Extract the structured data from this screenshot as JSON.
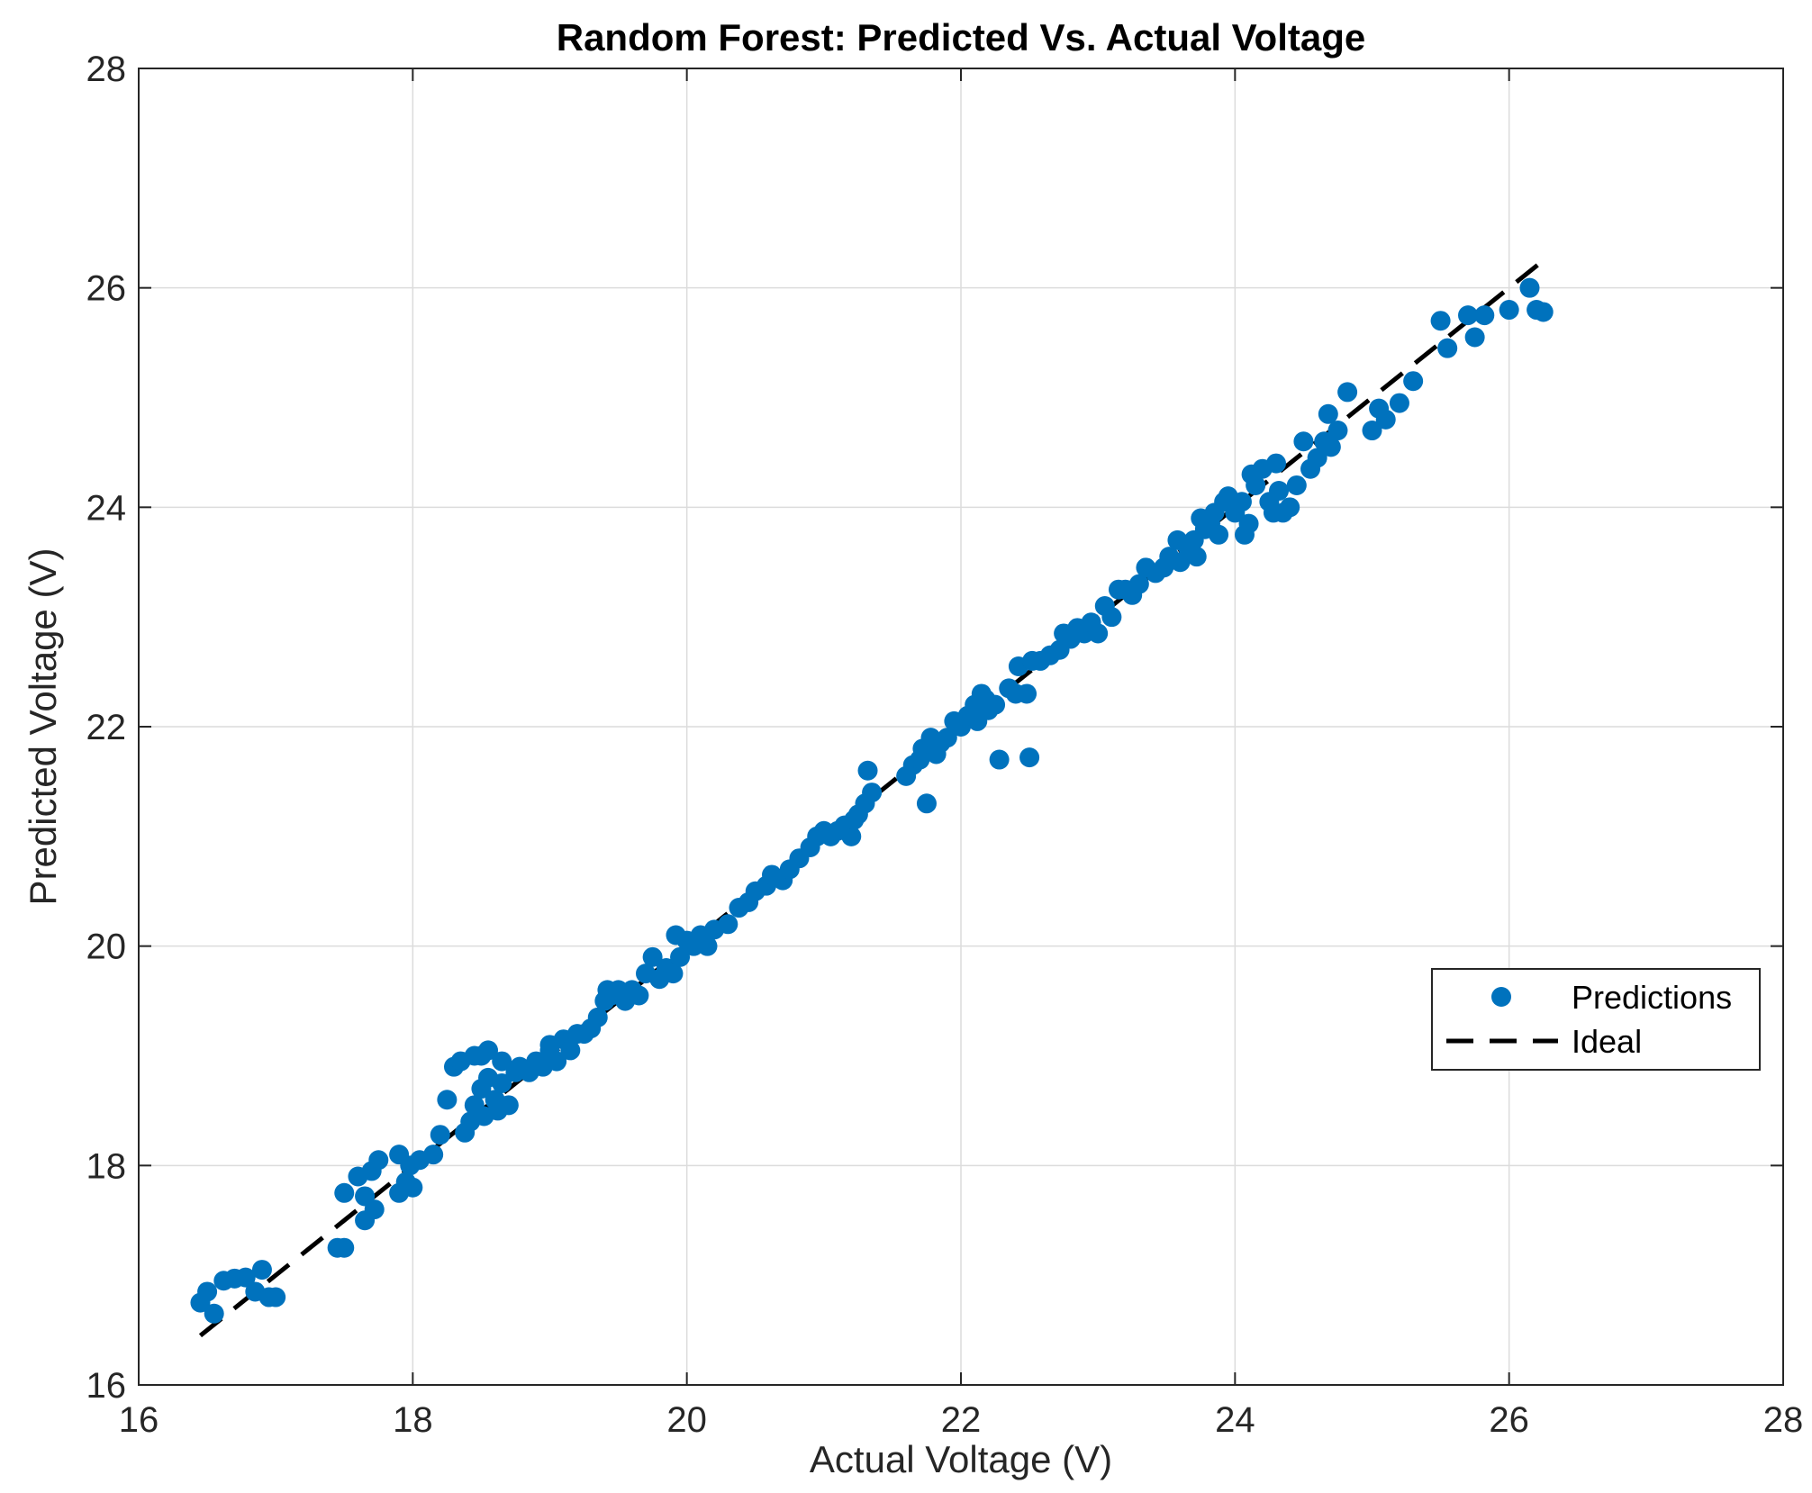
{
  "chart_data": {
    "type": "scatter",
    "title": "Random Forest: Predicted Vs. Actual Voltage",
    "xlabel": "Actual Voltage (V)",
    "ylabel": "Predicted Voltage (V)",
    "xlim": [
      16,
      28
    ],
    "ylim": [
      16,
      28
    ],
    "x_ticks": [
      "16",
      "18",
      "20",
      "22",
      "24",
      "26",
      "28"
    ],
    "y_ticks": [
      "16",
      "18",
      "20",
      "22",
      "24",
      "26",
      "28"
    ],
    "grid": true,
    "legend_position": "right",
    "colors": {
      "predictions": "#0072BD",
      "ideal": "#000000",
      "grid": "#dcdcdc",
      "axis": "#262626"
    },
    "series": [
      {
        "name": "Predictions",
        "style": "markers",
        "points": [
          [
            16.45,
            16.75
          ],
          [
            16.5,
            16.85
          ],
          [
            16.55,
            16.65
          ],
          [
            16.62,
            16.95
          ],
          [
            16.7,
            16.97
          ],
          [
            16.78,
            16.98
          ],
          [
            16.85,
            16.85
          ],
          [
            16.9,
            17.05
          ],
          [
            16.95,
            16.8
          ],
          [
            17.0,
            16.8
          ],
          [
            17.45,
            17.25
          ],
          [
            17.5,
            17.25
          ],
          [
            17.5,
            17.75
          ],
          [
            17.6,
            17.9
          ],
          [
            17.65,
            17.72
          ],
          [
            17.7,
            17.95
          ],
          [
            17.65,
            17.5
          ],
          [
            17.72,
            17.6
          ],
          [
            17.75,
            18.05
          ],
          [
            17.9,
            18.1
          ],
          [
            17.9,
            17.75
          ],
          [
            17.95,
            17.85
          ],
          [
            17.98,
            18.0
          ],
          [
            18.0,
            17.8
          ],
          [
            18.05,
            18.05
          ],
          [
            18.15,
            18.1
          ],
          [
            18.2,
            18.28
          ],
          [
            18.25,
            18.6
          ],
          [
            18.3,
            18.9
          ],
          [
            18.35,
            18.95
          ],
          [
            18.38,
            18.3
          ],
          [
            18.42,
            18.4
          ],
          [
            18.45,
            19.0
          ],
          [
            18.45,
            18.55
          ],
          [
            18.5,
            19.0
          ],
          [
            18.5,
            18.7
          ],
          [
            18.52,
            18.45
          ],
          [
            18.55,
            18.8
          ],
          [
            18.55,
            19.05
          ],
          [
            18.6,
            18.6
          ],
          [
            18.62,
            18.5
          ],
          [
            18.65,
            18.95
          ],
          [
            18.65,
            18.75
          ],
          [
            18.7,
            18.55
          ],
          [
            18.75,
            18.85
          ],
          [
            18.78,
            18.9
          ],
          [
            18.85,
            18.85
          ],
          [
            18.9,
            18.95
          ],
          [
            18.95,
            18.9
          ],
          [
            19.0,
            19.05
          ],
          [
            19.0,
            19.1
          ],
          [
            19.05,
            18.95
          ],
          [
            19.1,
            19.15
          ],
          [
            19.15,
            19.05
          ],
          [
            19.2,
            19.2
          ],
          [
            19.25,
            19.2
          ],
          [
            19.3,
            19.25
          ],
          [
            19.35,
            19.35
          ],
          [
            19.4,
            19.5
          ],
          [
            19.42,
            19.6
          ],
          [
            19.45,
            19.55
          ],
          [
            19.5,
            19.6
          ],
          [
            19.55,
            19.5
          ],
          [
            19.6,
            19.6
          ],
          [
            19.65,
            19.55
          ],
          [
            19.7,
            19.75
          ],
          [
            19.75,
            19.9
          ],
          [
            19.8,
            19.7
          ],
          [
            19.85,
            19.8
          ],
          [
            19.9,
            19.75
          ],
          [
            19.92,
            20.1
          ],
          [
            19.95,
            19.9
          ],
          [
            20.0,
            20.05
          ],
          [
            20.05,
            20.0
          ],
          [
            20.1,
            20.1
          ],
          [
            20.15,
            20.0
          ],
          [
            20.2,
            20.15
          ],
          [
            20.3,
            20.2
          ],
          [
            20.38,
            20.35
          ],
          [
            20.45,
            20.4
          ],
          [
            20.5,
            20.5
          ],
          [
            20.58,
            20.55
          ],
          [
            20.62,
            20.65
          ],
          [
            20.7,
            20.6
          ],
          [
            20.75,
            20.7
          ],
          [
            20.82,
            20.8
          ],
          [
            20.9,
            20.9
          ],
          [
            20.95,
            21.0
          ],
          [
            21.0,
            21.05
          ],
          [
            21.05,
            21.0
          ],
          [
            21.1,
            21.05
          ],
          [
            21.15,
            21.1
          ],
          [
            21.2,
            21.0
          ],
          [
            21.22,
            21.15
          ],
          [
            21.25,
            21.2
          ],
          [
            21.3,
            21.3
          ],
          [
            21.32,
            21.6
          ],
          [
            21.35,
            21.4
          ],
          [
            21.6,
            21.55
          ],
          [
            21.65,
            21.65
          ],
          [
            21.7,
            21.7
          ],
          [
            21.72,
            21.8
          ],
          [
            21.75,
            21.3
          ],
          [
            21.78,
            21.9
          ],
          [
            21.82,
            21.75
          ],
          [
            21.85,
            21.85
          ],
          [
            21.9,
            21.9
          ],
          [
            21.95,
            22.05
          ],
          [
            22.0,
            22.0
          ],
          [
            22.05,
            22.1
          ],
          [
            22.1,
            22.2
          ],
          [
            22.12,
            22.05
          ],
          [
            22.15,
            22.3
          ],
          [
            22.18,
            22.25
          ],
          [
            22.2,
            22.15
          ],
          [
            22.25,
            22.2
          ],
          [
            22.28,
            21.7
          ],
          [
            22.35,
            22.35
          ],
          [
            22.4,
            22.3
          ],
          [
            22.42,
            22.55
          ],
          [
            22.48,
            22.3
          ],
          [
            22.5,
            21.72
          ],
          [
            22.52,
            22.6
          ],
          [
            22.58,
            22.6
          ],
          [
            22.65,
            22.65
          ],
          [
            22.72,
            22.7
          ],
          [
            22.75,
            22.85
          ],
          [
            22.8,
            22.8
          ],
          [
            22.85,
            22.9
          ],
          [
            22.9,
            22.85
          ],
          [
            22.95,
            22.95
          ],
          [
            23.0,
            22.85
          ],
          [
            23.05,
            23.1
          ],
          [
            23.1,
            23.0
          ],
          [
            23.15,
            23.25
          ],
          [
            23.2,
            23.25
          ],
          [
            23.25,
            23.2
          ],
          [
            23.3,
            23.3
          ],
          [
            23.35,
            23.45
          ],
          [
            23.42,
            23.4
          ],
          [
            23.48,
            23.45
          ],
          [
            23.52,
            23.55
          ],
          [
            23.58,
            23.7
          ],
          [
            23.6,
            23.5
          ],
          [
            23.65,
            23.65
          ],
          [
            23.7,
            23.7
          ],
          [
            23.72,
            23.55
          ],
          [
            23.75,
            23.9
          ],
          [
            23.78,
            23.8
          ],
          [
            23.82,
            23.85
          ],
          [
            23.85,
            23.95
          ],
          [
            23.88,
            23.75
          ],
          [
            23.92,
            24.05
          ],
          [
            23.95,
            24.1
          ],
          [
            24.0,
            23.95
          ],
          [
            24.05,
            24.05
          ],
          [
            24.07,
            23.75
          ],
          [
            24.1,
            23.85
          ],
          [
            24.12,
            24.3
          ],
          [
            24.15,
            24.2
          ],
          [
            24.2,
            24.35
          ],
          [
            24.25,
            24.05
          ],
          [
            24.28,
            23.95
          ],
          [
            24.3,
            24.4
          ],
          [
            24.32,
            24.15
          ],
          [
            24.35,
            23.95
          ],
          [
            24.4,
            24.0
          ],
          [
            24.45,
            24.2
          ],
          [
            24.5,
            24.6
          ],
          [
            24.55,
            24.35
          ],
          [
            24.6,
            24.45
          ],
          [
            24.65,
            24.6
          ],
          [
            24.68,
            24.85
          ],
          [
            24.7,
            24.55
          ],
          [
            24.75,
            24.7
          ],
          [
            24.82,
            25.05
          ],
          [
            25.0,
            24.7
          ],
          [
            25.05,
            24.9
          ],
          [
            25.1,
            24.8
          ],
          [
            25.2,
            24.95
          ],
          [
            25.3,
            25.15
          ],
          [
            25.5,
            25.7
          ],
          [
            25.55,
            25.45
          ],
          [
            25.7,
            25.75
          ],
          [
            25.75,
            25.55
          ],
          [
            25.82,
            25.75
          ],
          [
            26.0,
            25.8
          ],
          [
            26.15,
            26.0
          ],
          [
            26.2,
            25.8
          ],
          [
            26.25,
            25.78
          ]
        ]
      },
      {
        "name": "Ideal",
        "style": "dashed-line",
        "points": [
          [
            16.45,
            16.45
          ],
          [
            26.25,
            26.25
          ]
        ]
      }
    ]
  }
}
